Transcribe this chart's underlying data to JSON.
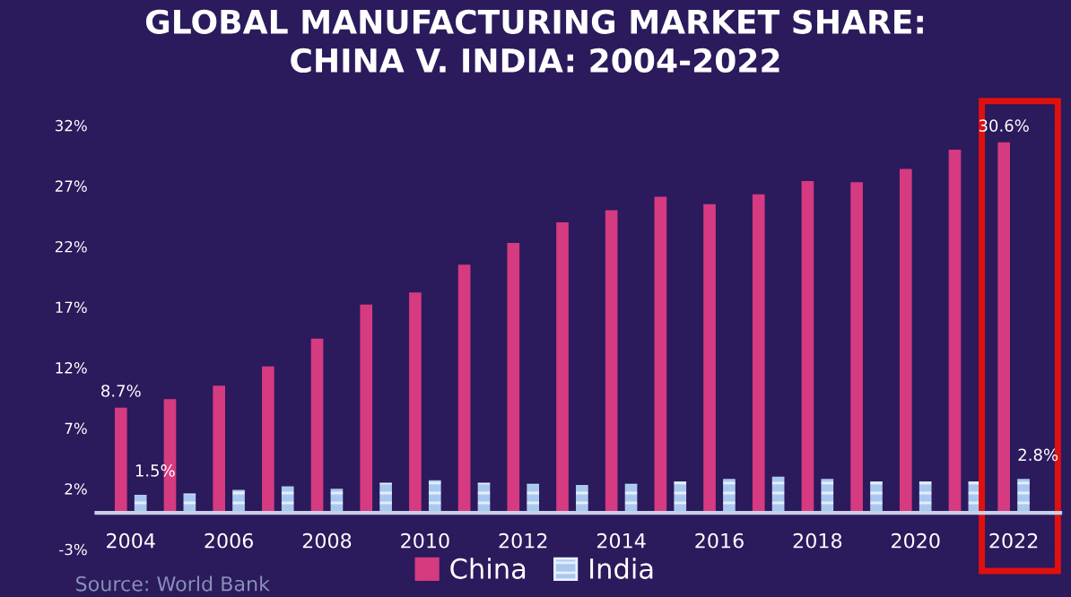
{
  "chart_data": {
    "type": "bar",
    "title": "GLOBAL MANUFACTURING MARKET SHARE:\nCHINA V. INDIA: 2004-2022",
    "categories": [
      "2004",
      null,
      "2006",
      null,
      "2008",
      null,
      "2010",
      null,
      "2012",
      null,
      "2014",
      null,
      "2016",
      null,
      "2018",
      null,
      "2020",
      null,
      "2022"
    ],
    "series": [
      {
        "name": "China",
        "color": "#d63a80",
        "values": [
          8.7,
          9.4,
          10.5,
          12.1,
          14.4,
          17.2,
          18.2,
          20.5,
          22.3,
          24.0,
          25.0,
          26.1,
          25.5,
          26.3,
          27.4,
          27.3,
          28.4,
          30.0,
          30.6
        ],
        "value_labels": [
          "8.7%",
          null,
          null,
          null,
          null,
          null,
          null,
          null,
          null,
          null,
          null,
          null,
          null,
          null,
          null,
          null,
          null,
          null,
          "30.6%"
        ]
      },
      {
        "name": "India",
        "color": "#a9c8f0",
        "values": [
          1.5,
          1.6,
          1.9,
          2.2,
          2.0,
          2.5,
          2.7,
          2.5,
          2.4,
          2.3,
          2.4,
          2.6,
          2.8,
          3.0,
          2.8,
          2.6,
          2.6,
          2.6,
          2.8
        ],
        "value_labels": [
          "1.5%",
          null,
          null,
          null,
          null,
          null,
          null,
          null,
          null,
          null,
          null,
          null,
          null,
          null,
          null,
          null,
          null,
          null,
          "2.8%"
        ]
      }
    ],
    "ylim": [
      -3,
      32
    ],
    "yticks": [
      {
        "value": -3,
        "label": "-3%"
      },
      {
        "value": 2,
        "label": "2%"
      },
      {
        "value": 7,
        "label": "7%"
      },
      {
        "value": 12,
        "label": "12%"
      },
      {
        "value": 17,
        "label": "17%"
      },
      {
        "value": 22,
        "label": "22%"
      },
      {
        "value": 27,
        "label": "27%"
      },
      {
        "value": 32,
        "label": "32%"
      }
    ],
    "grid": false,
    "legend": "bottom",
    "annotations": [
      "Source: World Bank"
    ]
  }
}
